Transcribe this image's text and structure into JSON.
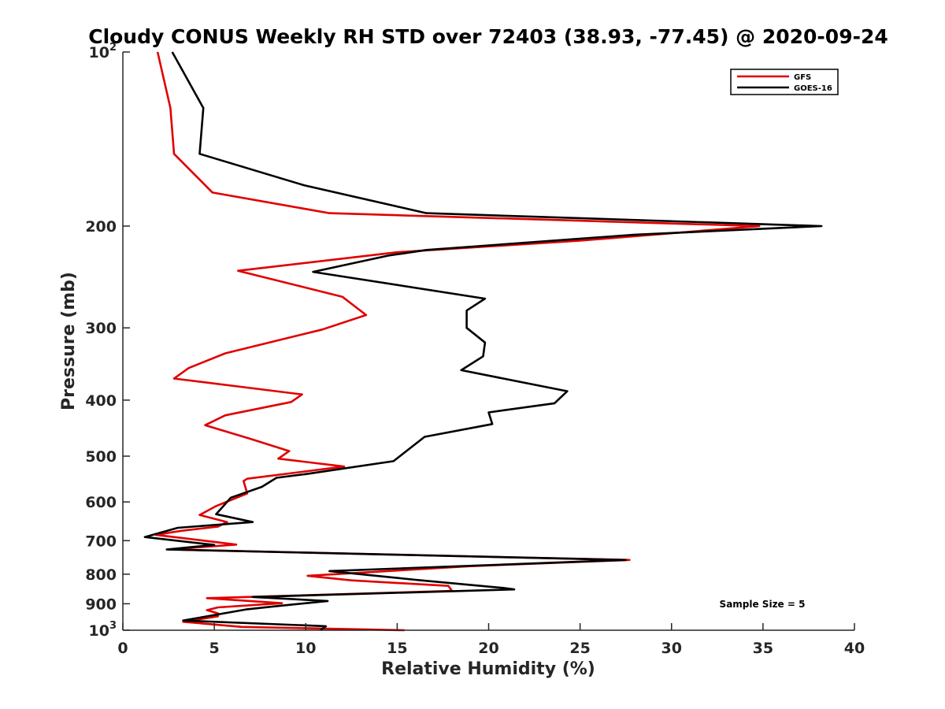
{
  "chart_data": {
    "type": "line",
    "title": "Cloudy CONUS Weekly RH STD over 72403 (38.93, -77.45) @ 2020-09-24",
    "xlabel": "Relative Humidity (%)",
    "ylabel": "Pressure (mb)",
    "xlim": [
      0,
      40
    ],
    "ylim": [
      100,
      1000
    ],
    "y_scale": "log",
    "y_reversed": true,
    "x_ticks": [
      0,
      5,
      10,
      15,
      20,
      25,
      30,
      35,
      40
    ],
    "y_ticks": [
      {
        "value": 100,
        "label": "10",
        "sup": "2"
      },
      {
        "value": 200,
        "label": "200",
        "sup": ""
      },
      {
        "value": 300,
        "label": "300",
        "sup": ""
      },
      {
        "value": 400,
        "label": "400",
        "sup": ""
      },
      {
        "value": 500,
        "label": "500",
        "sup": ""
      },
      {
        "value": 600,
        "label": "600",
        "sup": ""
      },
      {
        "value": 700,
        "label": "700",
        "sup": ""
      },
      {
        "value": 800,
        "label": "800",
        "sup": ""
      },
      {
        "value": 900,
        "label": "900",
        "sup": ""
      },
      {
        "value": 1000,
        "label": "10",
        "sup": "3"
      }
    ],
    "grid": false,
    "legend_position": "top-right",
    "annotation": "Sample Size = 5",
    "series": [
      {
        "name": "GFS",
        "color": "#e00000",
        "points": [
          [
            1.9,
            100
          ],
          [
            2.6,
            125
          ],
          [
            2.8,
            150
          ],
          [
            4.9,
            175
          ],
          [
            11.3,
            190
          ],
          [
            34.8,
            200
          ],
          [
            25.0,
            212
          ],
          [
            15.0,
            222
          ],
          [
            6.3,
            239
          ],
          [
            12.0,
            265
          ],
          [
            13.3,
            285
          ],
          [
            10.9,
            302
          ],
          [
            5.6,
            332
          ],
          [
            3.6,
            352
          ],
          [
            2.8,
            367
          ],
          [
            9.8,
            391
          ],
          [
            9.2,
            403
          ],
          [
            5.6,
            425
          ],
          [
            4.5,
            442
          ],
          [
            7.0,
            467
          ],
          [
            9.1,
            490
          ],
          [
            8.5,
            505
          ],
          [
            12.1,
            521
          ],
          [
            6.8,
            547
          ],
          [
            6.6,
            552
          ],
          [
            6.8,
            580
          ],
          [
            5.1,
            610
          ],
          [
            4.2,
            632
          ],
          [
            5.7,
            650
          ],
          [
            5.2,
            662
          ],
          [
            3.2,
            673
          ],
          [
            1.8,
            684
          ],
          [
            6.2,
            711
          ],
          [
            2.5,
            725
          ],
          [
            27.7,
            756
          ],
          [
            19.0,
            775
          ],
          [
            10.1,
            805
          ],
          [
            12.5,
            820
          ],
          [
            17.8,
            838
          ],
          [
            18.0,
            855
          ],
          [
            4.6,
            880
          ],
          [
            8.7,
            898
          ],
          [
            5.2,
            913
          ],
          [
            4.6,
            923
          ],
          [
            5.2,
            935
          ],
          [
            5.2,
            946
          ],
          [
            3.3,
            967
          ],
          [
            6.5,
            987
          ],
          [
            15.4,
            1000
          ]
        ]
      },
      {
        "name": "GOES-16",
        "color": "#000000",
        "points": [
          [
            2.7,
            100
          ],
          [
            4.4,
            125
          ],
          [
            4.2,
            150
          ],
          [
            9.9,
            170
          ],
          [
            16.6,
            190
          ],
          [
            38.2,
            200
          ],
          [
            28.0,
            207
          ],
          [
            16.6,
            220
          ],
          [
            14.5,
            225
          ],
          [
            10.4,
            240
          ],
          [
            19.8,
            267
          ],
          [
            18.8,
            280
          ],
          [
            18.8,
            300
          ],
          [
            19.8,
            318
          ],
          [
            19.7,
            336
          ],
          [
            18.5,
            355
          ],
          [
            24.3,
            386
          ],
          [
            23.6,
            405
          ],
          [
            20.0,
            420
          ],
          [
            20.2,
            440
          ],
          [
            16.5,
            463
          ],
          [
            15.5,
            490
          ],
          [
            14.8,
            510
          ],
          [
            10.0,
            537
          ],
          [
            8.4,
            545
          ],
          [
            7.6,
            565
          ],
          [
            5.9,
            590
          ],
          [
            5.5,
            610
          ],
          [
            5.1,
            630
          ],
          [
            7.1,
            650
          ],
          [
            3.0,
            665
          ],
          [
            1.2,
            690
          ],
          [
            5.0,
            712
          ],
          [
            2.4,
            725
          ],
          [
            27.5,
            756
          ],
          [
            11.3,
            790
          ],
          [
            16.3,
            820
          ],
          [
            20.8,
            845
          ],
          [
            21.4,
            850
          ],
          [
            7.1,
            876
          ],
          [
            11.2,
            890
          ],
          [
            8.2,
            910
          ],
          [
            6.8,
            920
          ],
          [
            3.3,
            962
          ],
          [
            11.1,
            984
          ],
          [
            10.8,
            1000
          ]
        ]
      }
    ]
  }
}
